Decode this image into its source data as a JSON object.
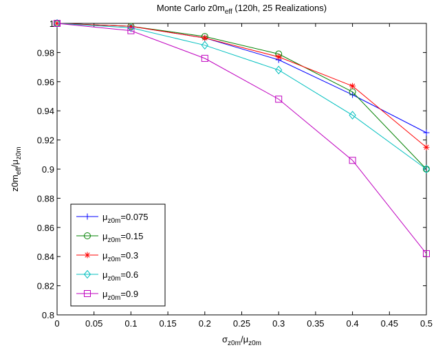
{
  "chart_data": {
    "type": "line",
    "title": [
      "Monte Carlo z0m",
      "eff",
      " (120h, 25 Realizations)"
    ],
    "xlabel": [
      "σ",
      "z0m",
      "/μ",
      "z0m"
    ],
    "ylabel": [
      "z0m",
      "eff",
      "/μ",
      "z0m"
    ],
    "x": [
      0,
      0.1,
      0.2,
      0.3,
      0.4,
      0.5
    ],
    "series": [
      {
        "name": "μz0m=0.075",
        "color": "#0000ff",
        "marker": "plus",
        "values": [
          1,
          0.998,
          0.99,
          0.975,
          0.951,
          0.925
        ]
      },
      {
        "name": "μz0m=0.15",
        "color": "#008000",
        "marker": "circle",
        "values": [
          1,
          0.998,
          0.991,
          0.979,
          0.953,
          0.9
        ]
      },
      {
        "name": "μz0m=0.3",
        "color": "#ff0000",
        "marker": "star",
        "values": [
          1,
          0.998,
          0.99,
          0.977,
          0.957,
          0.915
        ]
      },
      {
        "name": "μz0m=0.6",
        "color": "#00bfbf",
        "marker": "diamond",
        "values": [
          1,
          0.997,
          0.985,
          0.968,
          0.937,
          0.9
        ]
      },
      {
        "name": "μz0m=0.9",
        "color": "#bf00bf",
        "marker": "square",
        "values": [
          1,
          0.995,
          0.976,
          0.948,
          0.906,
          0.842
        ]
      }
    ],
    "xlim": [
      0,
      0.5
    ],
    "xticks": [
      0,
      0.05,
      0.1,
      0.15,
      0.2,
      0.25,
      0.3,
      0.35,
      0.4,
      0.45,
      0.5
    ],
    "ylim": [
      0.8,
      1
    ],
    "yticks": [
      0.8,
      0.82,
      0.84,
      0.86,
      0.88,
      0.9,
      0.92,
      0.94,
      0.96,
      0.98,
      1
    ],
    "grid": false,
    "legend": "lower left"
  }
}
